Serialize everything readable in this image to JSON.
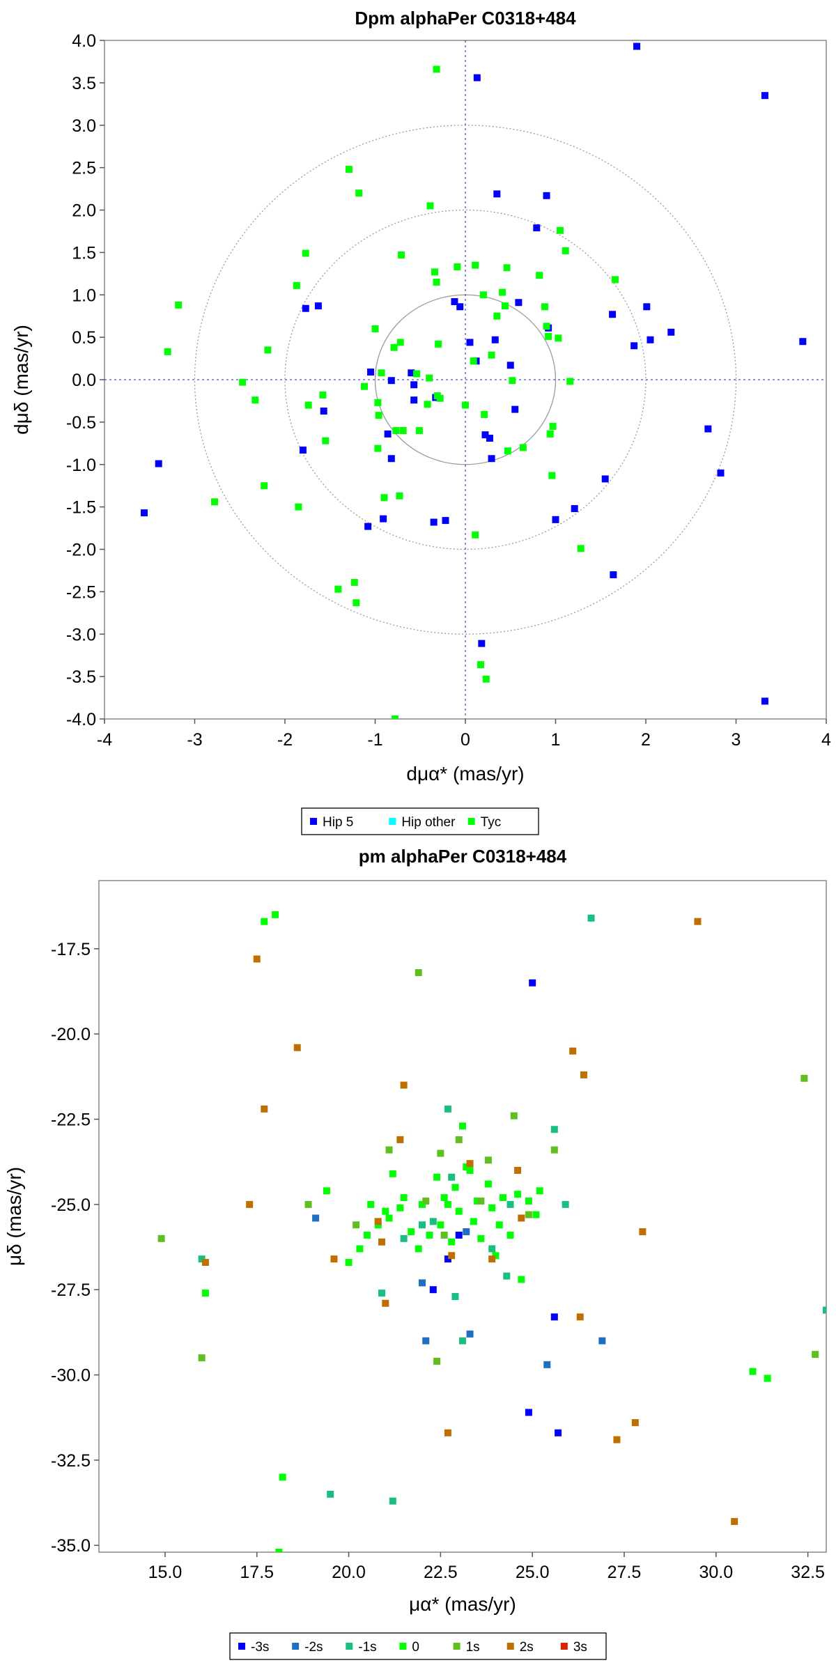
{
  "chart_data": [
    {
      "type": "scatter",
      "title": "Dpm alphaPer  C0318+484",
      "xlabel": "dμα* (mas/yr)",
      "ylabel": "dμδ (mas/yr)",
      "xlim": [
        -4,
        4
      ],
      "ylim": [
        -4,
        4
      ],
      "xticks": [
        "-4",
        "-3",
        "-2",
        "-1",
        "0",
        "1",
        "2",
        "3",
        "4"
      ],
      "yticks": [
        "-4.0",
        "-3.5",
        "-3.0",
        "-2.5",
        "-2.0",
        "-1.5",
        "-1.0",
        "-0.5",
        "0.0",
        "0.5",
        "1.0",
        "1.5",
        "2.0",
        "2.5",
        "3.0",
        "3.5",
        "4.0"
      ],
      "reference_circles": [
        1,
        2,
        3
      ],
      "zero_lines": true,
      "grid": false,
      "legend_position": "bottom",
      "series": [
        {
          "name": "Hip 5",
          "color": "#0000ff",
          "points": [
            [
              -3.56,
              -1.57
            ],
            [
              -3.4,
              -0.99
            ],
            [
              -1.77,
              0.84
            ],
            [
              -1.63,
              0.87
            ],
            [
              -1.57,
              -0.37
            ],
            [
              -1.8,
              -0.83
            ],
            [
              -1.05,
              0.09
            ],
            [
              -1.08,
              -1.73
            ],
            [
              -0.91,
              -1.64
            ],
            [
              -0.86,
              -0.64
            ],
            [
              -0.82,
              -0.93
            ],
            [
              -0.82,
              -0.01
            ],
            [
              -0.6,
              0.08
            ],
            [
              -0.57,
              -0.06
            ],
            [
              -0.57,
              -0.24
            ],
            [
              -0.33,
              -0.21
            ],
            [
              -0.35,
              -1.68
            ],
            [
              -0.22,
              -1.66
            ],
            [
              -0.12,
              0.92
            ],
            [
              -0.06,
              0.86
            ],
            [
              0.05,
              0.44
            ],
            [
              0.13,
              3.56
            ],
            [
              0.12,
              0.22
            ],
            [
              0.18,
              -3.11
            ],
            [
              0.22,
              -0.65
            ],
            [
              0.27,
              -0.69
            ],
            [
              0.29,
              -0.93
            ],
            [
              0.33,
              0.47
            ],
            [
              0.35,
              2.19
            ],
            [
              0.5,
              0.17
            ],
            [
              0.55,
              -0.35
            ],
            [
              0.59,
              0.91
            ],
            [
              0.79,
              1.79
            ],
            [
              0.9,
              2.17
            ],
            [
              0.92,
              0.61
            ],
            [
              1.0,
              -1.65
            ],
            [
              1.21,
              -1.52
            ],
            [
              1.55,
              -1.17
            ],
            [
              1.63,
              0.77
            ],
            [
              1.64,
              -2.3
            ],
            [
              1.87,
              0.4
            ],
            [
              1.9,
              3.93
            ],
            [
              2.01,
              0.86
            ],
            [
              2.05,
              0.47
            ],
            [
              2.28,
              0.56
            ],
            [
              2.69,
              -0.58
            ],
            [
              2.83,
              -1.1
            ],
            [
              3.32,
              3.35
            ],
            [
              3.32,
              -3.79
            ],
            [
              3.74,
              0.45
            ]
          ]
        },
        {
          "name": "Hip other",
          "color": "#00ffff",
          "points": []
        },
        {
          "name": "Tyc",
          "color": "#00ff00",
          "points": [
            [
              -3.3,
              0.33
            ],
            [
              -3.18,
              0.88
            ],
            [
              -2.78,
              -1.44
            ],
            [
              -2.47,
              -0.03
            ],
            [
              -2.33,
              -0.24
            ],
            [
              -2.23,
              -1.25
            ],
            [
              -2.19,
              0.35
            ],
            [
              -1.87,
              1.11
            ],
            [
              -1.85,
              -1.5
            ],
            [
              -1.77,
              1.49
            ],
            [
              -1.74,
              -0.3
            ],
            [
              -1.58,
              -0.18
            ],
            [
              -1.55,
              -0.72
            ],
            [
              -1.41,
              -2.47
            ],
            [
              -1.29,
              2.48
            ],
            [
              -1.23,
              -2.39
            ],
            [
              -1.21,
              -2.63
            ],
            [
              -1.12,
              -0.08
            ],
            [
              -1.18,
              2.2
            ],
            [
              -1.0,
              0.6
            ],
            [
              -0.97,
              -0.27
            ],
            [
              -0.96,
              -0.42
            ],
            [
              -0.93,
              0.08
            ],
            [
              -0.97,
              -0.81
            ],
            [
              -0.9,
              -1.39
            ],
            [
              -0.79,
              0.38
            ],
            [
              -0.77,
              -0.6
            ],
            [
              -0.72,
              0.44
            ],
            [
              -0.71,
              1.47
            ],
            [
              -0.73,
              -1.37
            ],
            [
              -0.69,
              -0.6
            ],
            [
              -0.54,
              0.07
            ],
            [
              -0.51,
              -0.6
            ],
            [
              -0.42,
              -0.29
            ],
            [
              -0.4,
              0.02
            ],
            [
              -0.39,
              2.05
            ],
            [
              -0.34,
              1.27
            ],
            [
              -0.32,
              1.15
            ],
            [
              -0.31,
              -0.19
            ],
            [
              -0.28,
              -0.22
            ],
            [
              -0.3,
              0.42
            ],
            [
              -0.32,
              3.66
            ],
            [
              -0.09,
              1.33
            ],
            [
              0.0,
              -0.3
            ],
            [
              0.09,
              0.22
            ],
            [
              0.11,
              -1.83
            ],
            [
              0.11,
              1.35
            ],
            [
              0.17,
              -3.36
            ],
            [
              0.2,
              1.0
            ],
            [
              0.21,
              -0.41
            ],
            [
              0.23,
              -3.53
            ],
            [
              0.29,
              0.29
            ],
            [
              0.35,
              0.75
            ],
            [
              0.41,
              1.03
            ],
            [
              0.44,
              0.87
            ],
            [
              0.46,
              1.32
            ],
            [
              0.52,
              -0.01
            ],
            [
              0.47,
              -0.84
            ],
            [
              0.64,
              -0.8
            ],
            [
              0.82,
              1.23
            ],
            [
              0.88,
              0.86
            ],
            [
              0.9,
              0.63
            ],
            [
              0.92,
              0.51
            ],
            [
              0.96,
              -1.13
            ],
            [
              0.94,
              -0.64
            ],
            [
              0.97,
              -0.55
            ],
            [
              1.03,
              0.49
            ],
            [
              1.05,
              1.76
            ],
            [
              1.11,
              1.52
            ],
            [
              1.16,
              -0.02
            ],
            [
              1.28,
              -1.99
            ],
            [
              1.66,
              1.18
            ],
            [
              -0.78,
              -4.0
            ]
          ]
        }
      ]
    },
    {
      "type": "scatter",
      "title": "pm alphaPer  C0318+484",
      "xlabel": "μα* (mas/yr)",
      "ylabel": "μδ (mas/yr)",
      "xlim": [
        13.2,
        33.0
      ],
      "ylim": [
        -35.2,
        -15.5
      ],
      "xticks": [
        "15.0",
        "17.5",
        "20.0",
        "22.5",
        "25.0",
        "27.5",
        "30.0",
        "32.5"
      ],
      "yticks": [
        "-17.5",
        "-20.0",
        "-22.5",
        "-25.0",
        "-27.5",
        "-30.0",
        "-32.5",
        "-35.0"
      ],
      "grid": false,
      "legend_position": "bottom",
      "series": [
        {
          "name": "-3s",
          "color": "#0000ff",
          "points": [
            [
              25.0,
              -18.5
            ],
            [
              22.3,
              -27.5
            ],
            [
              24.9,
              -31.1
            ],
            [
              25.7,
              -31.7
            ],
            [
              25.6,
              -28.3
            ],
            [
              23.0,
              -25.9
            ],
            [
              22.7,
              -26.6
            ]
          ]
        },
        {
          "name": "-2s",
          "color": "#1c6fc3",
          "points": [
            [
              19.1,
              -25.4
            ],
            [
              22.1,
              -29.0
            ],
            [
              23.3,
              -28.8
            ],
            [
              25.4,
              -29.7
            ],
            [
              26.9,
              -29.0
            ],
            [
              22.0,
              -27.3
            ],
            [
              23.2,
              -25.8
            ]
          ]
        },
        {
          "name": "-1s",
          "color": "#1abf7f",
          "points": [
            [
              26.6,
              -16.6
            ],
            [
              16.0,
              -26.6
            ],
            [
              22.7,
              -22.2
            ],
            [
              25.6,
              -22.8
            ],
            [
              25.9,
              -25.0
            ],
            [
              33.0,
              -28.1
            ],
            [
              19.5,
              -33.5
            ],
            [
              21.2,
              -33.7
            ],
            [
              23.1,
              -29.0
            ],
            [
              22.9,
              -27.7
            ],
            [
              20.9,
              -27.6
            ],
            [
              24.3,
              -27.1
            ],
            [
              22.0,
              -25.6
            ],
            [
              23.9,
              -26.3
            ],
            [
              21.5,
              -26.0
            ],
            [
              24.4,
              -25.0
            ],
            [
              22.3,
              -25.5
            ],
            [
              22.8,
              -24.2
            ]
          ]
        },
        {
          "name": "0",
          "color": "#00ff00",
          "points": [
            [
              17.7,
              -16.7
            ],
            [
              18.0,
              -16.5
            ],
            [
              16.1,
              -27.6
            ],
            [
              18.2,
              -33.0
            ],
            [
              18.1,
              -35.2
            ],
            [
              19.4,
              -24.6
            ],
            [
              20.0,
              -26.7
            ],
            [
              20.3,
              -26.3
            ],
            [
              20.5,
              -25.9
            ],
            [
              20.6,
              -25.0
            ],
            [
              20.8,
              -25.6
            ],
            [
              21.1,
              -25.4
            ],
            [
              21.2,
              -24.1
            ],
            [
              21.4,
              -25.1
            ],
            [
              21.5,
              -24.8
            ],
            [
              21.7,
              -25.8
            ],
            [
              21.9,
              -26.3
            ],
            [
              22.0,
              -25.0
            ],
            [
              22.2,
              -25.9
            ],
            [
              22.4,
              -24.2
            ],
            [
              22.5,
              -25.6
            ],
            [
              22.6,
              -24.8
            ],
            [
              22.8,
              -26.1
            ],
            [
              22.9,
              -24.5
            ],
            [
              23.0,
              -25.2
            ],
            [
              23.1,
              -22.7
            ],
            [
              23.3,
              -24.0
            ],
            [
              23.4,
              -25.5
            ],
            [
              23.5,
              -24.9
            ],
            [
              23.6,
              -26.0
            ],
            [
              23.8,
              -24.4
            ],
            [
              23.9,
              -25.1
            ],
            [
              24.0,
              -26.5
            ],
            [
              24.2,
              -24.8
            ],
            [
              24.4,
              -25.9
            ],
            [
              24.6,
              -24.7
            ],
            [
              24.7,
              -27.2
            ],
            [
              24.9,
              -24.9
            ],
            [
              25.1,
              -25.3
            ],
            [
              25.2,
              -24.6
            ],
            [
              31.0,
              -29.9
            ],
            [
              31.4,
              -30.1
            ],
            [
              21.0,
              -25.2
            ],
            [
              22.7,
              -25.0
            ],
            [
              23.2,
              -23.9
            ],
            [
              24.1,
              -25.6
            ]
          ]
        },
        {
          "name": "1s",
          "color": "#5fbf1f",
          "points": [
            [
              14.9,
              -26.0
            ],
            [
              16.0,
              -29.5
            ],
            [
              18.9,
              -25.0
            ],
            [
              20.2,
              -25.6
            ],
            [
              21.1,
              -23.4
            ],
            [
              21.9,
              -18.2
            ],
            [
              22.4,
              -29.6
            ],
            [
              22.5,
              -23.5
            ],
            [
              23.0,
              -23.1
            ],
            [
              23.6,
              -24.9
            ],
            [
              23.8,
              -23.7
            ],
            [
              24.5,
              -22.4
            ],
            [
              25.6,
              -23.4
            ],
            [
              32.4,
              -21.3
            ],
            [
              32.7,
              -29.4
            ],
            [
              24.9,
              -25.3
            ],
            [
              22.6,
              -25.9
            ],
            [
              22.1,
              -24.9
            ]
          ]
        },
        {
          "name": "2s",
          "color": "#bf6f00",
          "points": [
            [
              17.5,
              -17.8
            ],
            [
              17.3,
              -25.0
            ],
            [
              16.1,
              -26.7
            ],
            [
              17.7,
              -22.2
            ],
            [
              18.6,
              -20.4
            ],
            [
              19.6,
              -26.6
            ],
            [
              20.8,
              -25.5
            ],
            [
              20.9,
              -26.1
            ],
            [
              21.0,
              -27.9
            ],
            [
              21.5,
              -21.5
            ],
            [
              21.4,
              -23.1
            ],
            [
              22.7,
              -31.7
            ],
            [
              22.8,
              -26.5
            ],
            [
              23.3,
              -23.8
            ],
            [
              23.9,
              -26.6
            ],
            [
              24.7,
              -25.4
            ],
            [
              24.6,
              -24.0
            ],
            [
              26.1,
              -20.5
            ],
            [
              26.4,
              -21.2
            ],
            [
              26.3,
              -28.3
            ],
            [
              28.0,
              -25.8
            ],
            [
              27.3,
              -31.9
            ],
            [
              27.8,
              -31.4
            ],
            [
              29.5,
              -16.7
            ],
            [
              30.5,
              -34.3
            ]
          ]
        },
        {
          "name": "3s",
          "color": "#dd2200",
          "points": []
        }
      ]
    }
  ]
}
